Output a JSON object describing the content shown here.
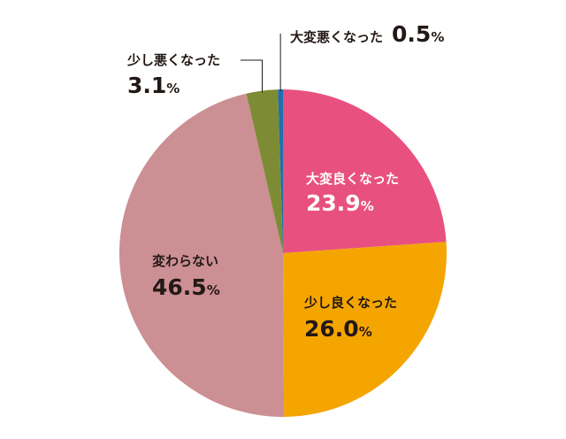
{
  "chart_data": {
    "type": "pie",
    "start_angle_deg": 0,
    "direction": "clockwise",
    "unit": "%",
    "slices": [
      {
        "label": "大変良くなった",
        "value": 23.9,
        "value_text": "23.9",
        "color": "#e8517f",
        "label_color": "#ffffff"
      },
      {
        "label": "少し良くなった",
        "value": 26.0,
        "value_text": "26.0",
        "color": "#f5a500",
        "label_color": "#231815"
      },
      {
        "label": "変わらない",
        "value": 46.5,
        "value_text": "46.5",
        "color": "#cc8f94",
        "label_color": "#231815"
      },
      {
        "label": "少し悪くなった",
        "value": 3.1,
        "value_text": "3.1",
        "color": "#7d8c34",
        "label_color": "#231815"
      },
      {
        "label": "大変悪くなった",
        "value": 0.5,
        "value_text": "0.5",
        "color": "#1f6fae",
        "label_color": "#231815"
      }
    ]
  }
}
